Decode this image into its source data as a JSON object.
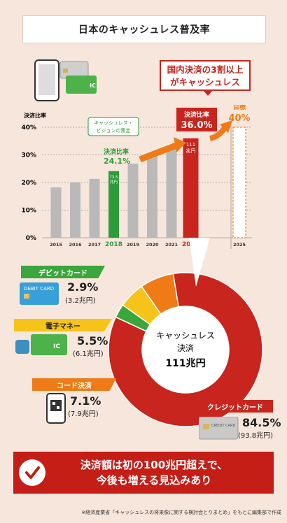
{
  "title": "日本のキャッシュレス普及率",
  "callout": {
    "line1": "国内決済の3割以上",
    "line2": "がキャッシュレス"
  },
  "chart_data": {
    "type": "bar",
    "ylabel": "決済比率",
    "ylim": [
      0,
      40
    ],
    "yticks": [
      "0%",
      "10%",
      "20%",
      "30%",
      "40%"
    ],
    "categories": [
      "2015",
      "2016",
      "2017",
      "2018",
      "2019",
      "2020",
      "2021",
      "2022",
      "2025"
    ],
    "values": [
      18.2,
      20.0,
      21.3,
      24.1,
      26.8,
      29.7,
      32.5,
      36.0,
      40.0
    ],
    "colors": [
      "#b9b9b9",
      "#b9b9b9",
      "#b9b9b9",
      "#2e9b3a",
      "#b9b9b9",
      "#b9b9b9",
      "#b9b9b9",
      "#c7251d",
      "#f28a1c"
    ],
    "annotations": {
      "vision_label": "キャッシュレス・ビジョンの策定",
      "y2018_label": "決済比率",
      "y2018_value": "24.1%",
      "y2018_bar_text": "73.5 兆円",
      "y2022_label": "決済比率",
      "y2022_value": "36.0%",
      "y2022_bar_text": "111 兆円",
      "target_label": "目標",
      "target_value": "40%"
    }
  },
  "donut": {
    "center_line1": "キャッシュレス",
    "center_line2": "決済",
    "center_line3": "111兆円",
    "segments": [
      {
        "name": "クレジットカード",
        "percent": "84.5%",
        "amount": "(93.8兆円)",
        "value": 84.5,
        "color": "#c7251d"
      },
      {
        "name": "コード決済",
        "percent": "7.1%",
        "amount": "(7.9兆円)",
        "value": 7.1,
        "color": "#ee7b16"
      },
      {
        "name": "電子マネー",
        "percent": "5.5%",
        "amount": "(6.1兆円)",
        "value": 5.5,
        "color": "#f5c31a"
      },
      {
        "name": "デビットカード",
        "percent": "2.9%",
        "amount": "(3.2兆円)",
        "value": 2.9,
        "color": "#3aa63c"
      }
    ]
  },
  "cards": {
    "debit_text": "DEBIT CARD",
    "ic_text": "IC",
    "credit_text": "CREDIT CARD"
  },
  "bottom": {
    "line1": "決済額は初の100兆円超えで、",
    "line2": "今後も増える見込みあり"
  },
  "footnote": "※経済産業省「キャッシュレスの将来像に関する検討会とりまとめ」をもとに編集部で作成"
}
